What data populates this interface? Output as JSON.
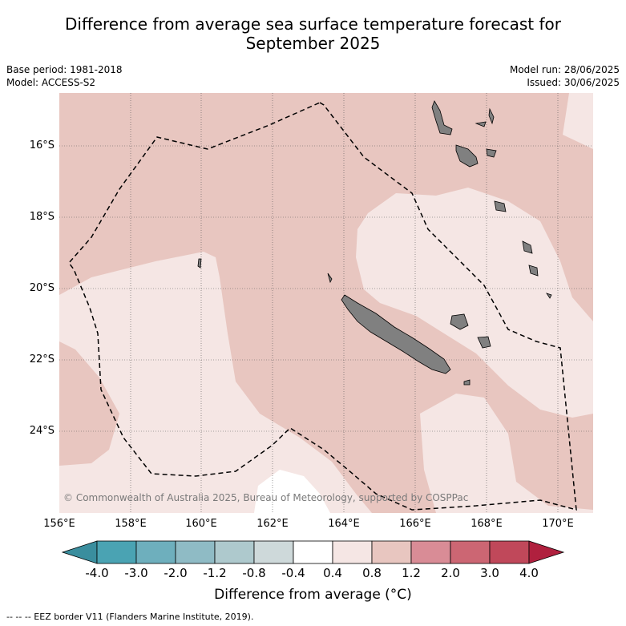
{
  "title_line1": "Difference from average sea surface temperature forecast for",
  "title_line2": "September 2025",
  "base_period": "Base period: 1981-2018",
  "model": "Model: ACCESS-S2",
  "model_run": "Model run: 28/06/2025",
  "issued": "Issued: 30/06/2025",
  "copyright": "© Commonwealth of Australia 2025, Bureau of Meteorology, supported by COSPPac",
  "lat_labels": [
    "16°S",
    "18°S",
    "20°S",
    "22°S",
    "24°S"
  ],
  "lon_labels": [
    "156°E",
    "158°E",
    "160°E",
    "162°E",
    "164°E",
    "166°E",
    "168°E",
    "170°E"
  ],
  "colorbar": {
    "labels": [
      "-4.0",
      "-3.0",
      "-2.0",
      "-1.2",
      "-0.8",
      "-0.4",
      "0.4",
      "0.8",
      "1.2",
      "2.0",
      "3.0",
      "4.0"
    ],
    "colors": [
      "#3a8e9e",
      "#4aa3b3",
      "#6eafbd",
      "#8fbbc5",
      "#aec9cd",
      "#ced9da",
      "#ffffff",
      "#f5e6e4",
      "#e8c6c0",
      "#d98c96",
      "#cc6673",
      "#c0485a",
      "#b0203e"
    ],
    "title": "Difference from average (°C)"
  },
  "footer": "--  --  -- EEZ border V11 (Flanders Marine Institute, 2019).",
  "colors": {
    "warm_fill": "#e8c6c0",
    "light_fill": "#f5e6e4",
    "neutral_fill": "#ffffff",
    "land": "#808080"
  }
}
